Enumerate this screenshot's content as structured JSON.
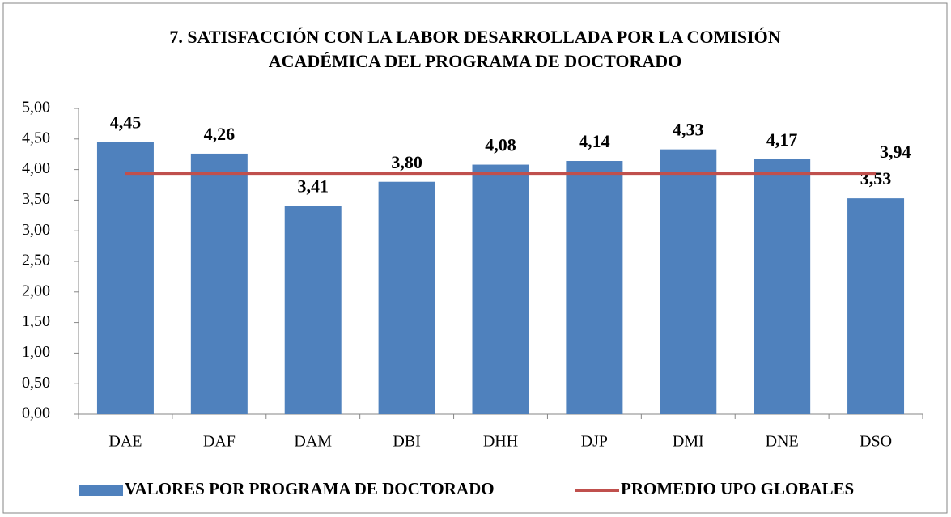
{
  "chart_data": {
    "type": "bar",
    "title": [
      "7. SATISFACCIÓN CON LA LABOR DESARROLLADA POR LA COMISIÓN",
      "ACADÉMICA DEL PROGRAMA DE DOCTORADO"
    ],
    "categories": [
      "DAE",
      "DAF",
      "DAM",
      "DBI",
      "DHH",
      "DJP",
      "DMI",
      "DNE",
      "DSO"
    ],
    "series": [
      {
        "name": "VALORES POR PROGRAMA DE DOCTORADO",
        "type": "bar",
        "color": "#4f81bd",
        "values": [
          4.45,
          4.26,
          3.41,
          3.8,
          4.08,
          4.14,
          4.33,
          4.17,
          3.53
        ],
        "value_labels": [
          "4,45",
          "4,26",
          "3,41",
          "3,80",
          "4,08",
          "4,14",
          "4,33",
          "4,17",
          "3,53"
        ]
      },
      {
        "name": "PROMEDIO UPO GLOBALES",
        "type": "line",
        "color": "#c0504d",
        "values": [
          3.94,
          3.94,
          3.94,
          3.94,
          3.94,
          3.94,
          3.94,
          3.94,
          3.94
        ],
        "value_labels": [
          null,
          null,
          null,
          null,
          null,
          null,
          null,
          null,
          "3,94"
        ]
      }
    ],
    "ylim": [
      0,
      5
    ],
    "yticks": [
      {
        "value": 0,
        "label": "0,00"
      },
      {
        "value": 0.5,
        "label": "0,50"
      },
      {
        "value": 1,
        "label": "1,00"
      },
      {
        "value": 1.5,
        "label": "1,50"
      },
      {
        "value": 2,
        "label": "2,00"
      },
      {
        "value": 2.5,
        "label": "2,50"
      },
      {
        "value": 3,
        "label": "3,00"
      },
      {
        "value": 3.5,
        "label": "3,50"
      },
      {
        "value": 4,
        "label": "4,00"
      },
      {
        "value": 4.5,
        "label": "4,50"
      },
      {
        "value": 5,
        "label": "5,00"
      }
    ],
    "grid": false,
    "legend": "bottom"
  }
}
